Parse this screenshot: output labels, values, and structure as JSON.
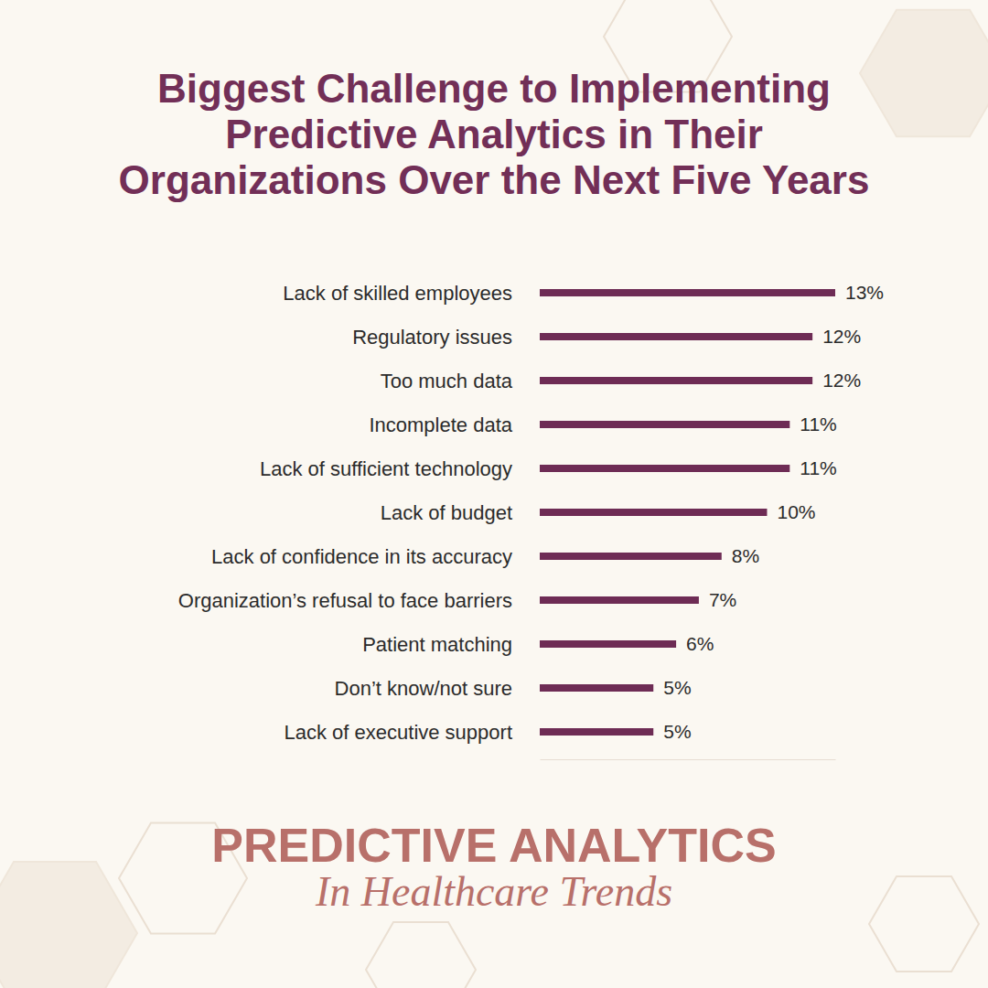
{
  "chart_data": {
    "type": "bar",
    "title": "Biggest Challenge to Implementing Predictive Analytics in Their Organizations Over the Next Five Years",
    "categories": [
      "Lack of skilled employees",
      "Regulatory issues",
      "Too much data",
      "Incomplete data",
      "Lack of sufficient technology",
      "Lack of budget",
      "Lack of confidence in its accuracy",
      "Organization’s refusal to face barriers",
      "Patient matching",
      "Don’t know/not sure",
      "Lack of executive support"
    ],
    "values": [
      13,
      12,
      12,
      11,
      11,
      10,
      8,
      7,
      6,
      5,
      5
    ],
    "value_labels": [
      "13%",
      "12%",
      "12%",
      "11%",
      "11%",
      "10%",
      "8%",
      "7%",
      "6%",
      "5%",
      "5%"
    ],
    "color": "#6e2c55",
    "orientation": "horizontal",
    "data_labels": true,
    "tick_labels": "y",
    "grid": false,
    "xlim": [
      0,
      13
    ],
    "xticks": [],
    "annotations": [
      "PREDICTIVE ANALYTICS",
      "In Healthcare Trends"
    ]
  }
}
